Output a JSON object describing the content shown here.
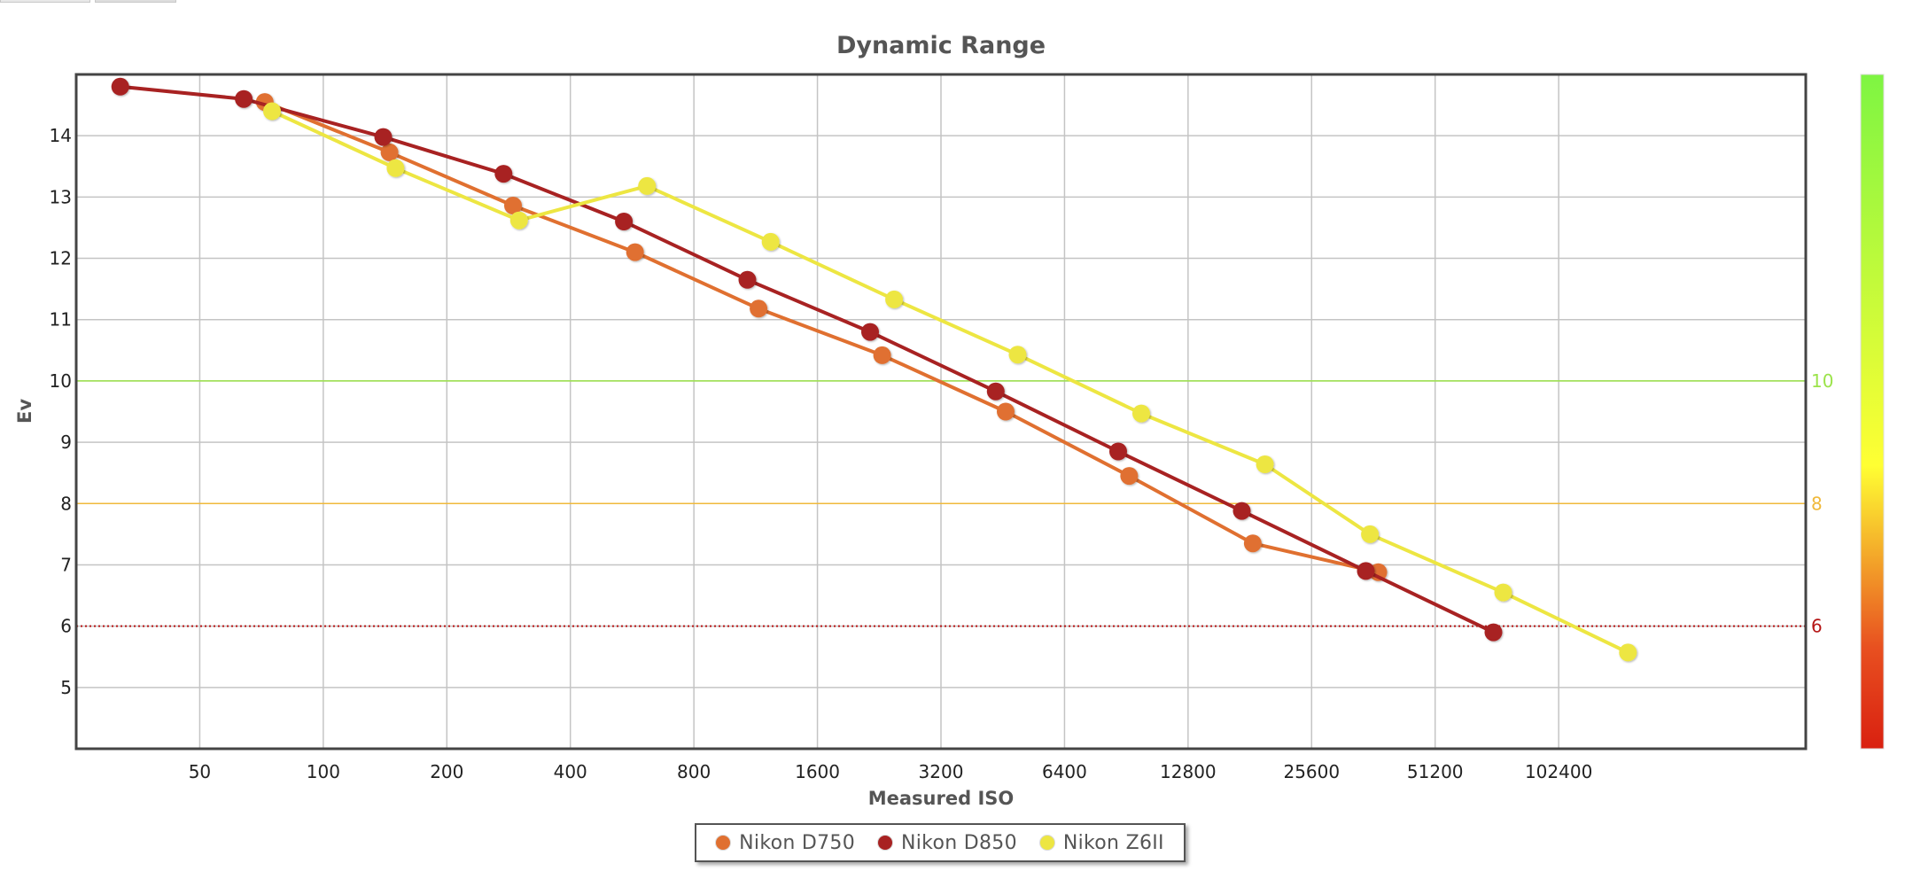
{
  "chart_data": {
    "type": "line",
    "title": "Dynamic Range",
    "xlabel": "Measured ISO",
    "ylabel": "Ev",
    "x_scale": "log2",
    "xlim": [
      25,
      409600
    ],
    "ylim": [
      4,
      15
    ],
    "x_ticks": [
      50,
      100,
      200,
      400,
      800,
      1600,
      3200,
      6400,
      12800,
      25600,
      51200,
      102400
    ],
    "y_ticks": [
      5,
      6,
      7,
      8,
      9,
      10,
      11,
      12,
      13,
      14
    ],
    "grid": true,
    "legend_position": "bottom",
    "reference_lines": [
      {
        "label": "10",
        "y": 10,
        "color": "#9be34a",
        "style": "solid"
      },
      {
        "label": "8",
        "y": 8,
        "color": "#f0b93b",
        "style": "solid"
      },
      {
        "label": "6",
        "y": 6,
        "color": "#b51515",
        "style": "dotted"
      }
    ],
    "color_scale": {
      "colors": [
        "#7ef542",
        "#ffff33",
        "#e85020",
        "#d92010"
      ]
    },
    "series": [
      {
        "name": "Nikon D750",
        "color": "#e07030",
        "points": [
          [
            72,
            14.55
          ],
          [
            145,
            13.73
          ],
          [
            290,
            12.86
          ],
          [
            575,
            12.1
          ],
          [
            1150,
            11.18
          ],
          [
            2300,
            10.42
          ],
          [
            4600,
            9.5
          ],
          [
            9200,
            8.45
          ],
          [
            18400,
            7.35
          ],
          [
            37200,
            6.88
          ]
        ]
      },
      {
        "name": "Nikon D850",
        "color": "#a82222",
        "points": [
          [
            32,
            14.8
          ],
          [
            64,
            14.6
          ],
          [
            140,
            13.98
          ],
          [
            275,
            13.38
          ],
          [
            540,
            12.6
          ],
          [
            1080,
            11.65
          ],
          [
            2150,
            10.8
          ],
          [
            4350,
            9.83
          ],
          [
            8650,
            8.85
          ],
          [
            17300,
            7.88
          ],
          [
            34700,
            6.9
          ],
          [
            71000,
            5.9
          ]
        ]
      },
      {
        "name": "Nikon Z6II",
        "color": "#ede642",
        "points": [
          [
            75,
            14.4
          ],
          [
            150,
            13.47
          ],
          [
            300,
            12.62
          ],
          [
            615,
            13.18
          ],
          [
            1230,
            12.27
          ],
          [
            2460,
            11.33
          ],
          [
            4920,
            10.43
          ],
          [
            9840,
            9.47
          ],
          [
            19700,
            8.64
          ],
          [
            35500,
            7.5
          ],
          [
            75000,
            6.55
          ],
          [
            151000,
            5.57
          ]
        ]
      }
    ]
  }
}
